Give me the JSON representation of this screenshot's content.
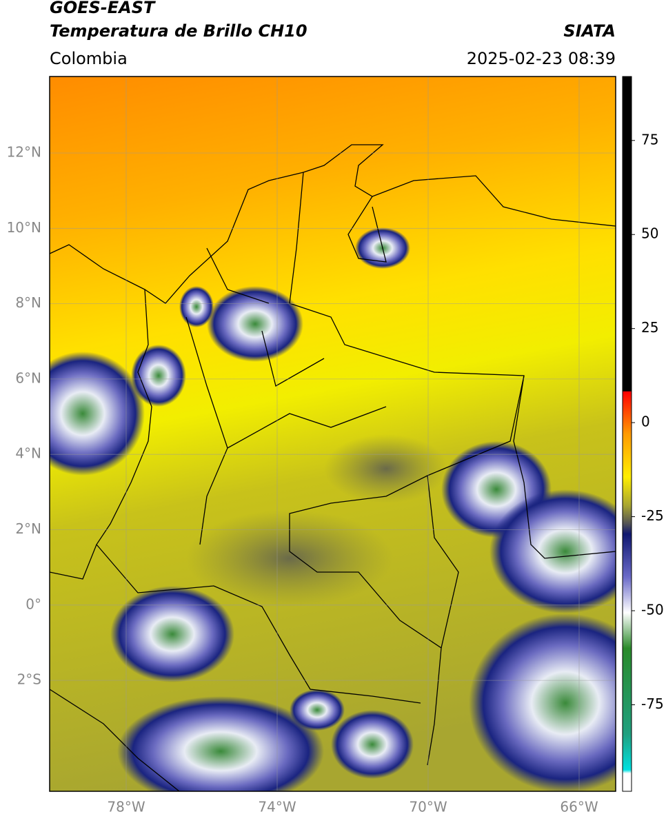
{
  "header": {
    "satellite": "GOES-EAST",
    "product": "Temperatura de Brillo CH10",
    "region": "Colombia",
    "source": "SIATA",
    "datetime": "2025-02-23 08:39"
  },
  "map": {
    "lat_labels": [
      "12°N",
      "10°N",
      "8°N",
      "6°N",
      "4°N",
      "2°N",
      "0°",
      "2°S"
    ],
    "lon_labels": [
      "78°W",
      "74°W",
      "70°W",
      "66°W"
    ]
  },
  "colorbar": {
    "lim": [
      -98,
      92
    ],
    "ticks": [
      75,
      50,
      25,
      0,
      -25,
      -50,
      -75
    ]
  }
}
